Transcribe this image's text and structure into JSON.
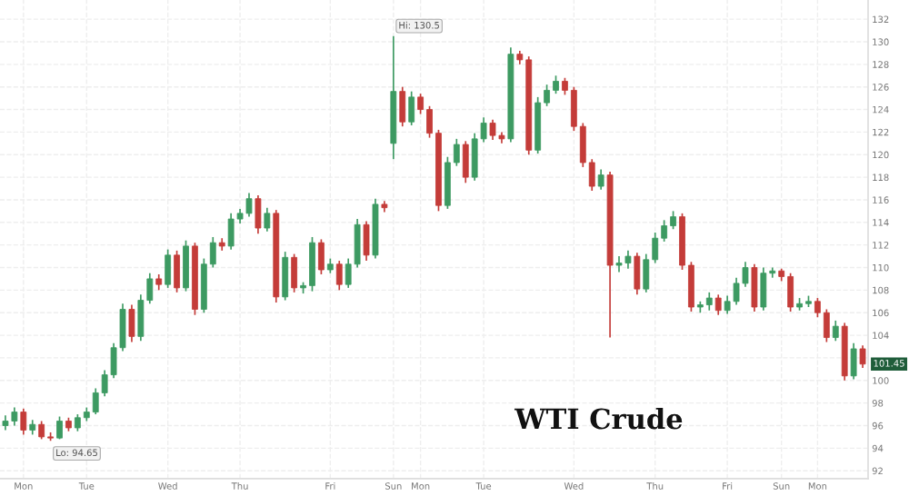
{
  "chart_data": {
    "type": "candlestick",
    "title": "WTI Crude",
    "categories": [
      null,
      null,
      "Mon",
      null,
      null,
      null,
      null,
      null,
      null,
      "Tue",
      null,
      null,
      null,
      null,
      null,
      null,
      null,
      null,
      "Wed",
      null,
      null,
      null,
      null,
      null,
      null,
      null,
      "Thu",
      null,
      null,
      null,
      null,
      null,
      null,
      null,
      null,
      null,
      "Fri",
      null,
      null,
      null,
      null,
      null,
      null,
      "Sun",
      null,
      null,
      "Mon",
      null,
      null,
      null,
      null,
      null,
      null,
      "Tue",
      null,
      null,
      null,
      null,
      null,
      null,
      null,
      null,
      null,
      "Wed",
      null,
      null,
      null,
      null,
      null,
      null,
      null,
      null,
      "Thu",
      null,
      null,
      null,
      null,
      null,
      null,
      null,
      "Fri",
      null,
      null,
      null,
      null,
      null,
      "Sun",
      null,
      null,
      null,
      "Mon",
      null,
      null,
      null,
      null,
      null
    ],
    "ohlc": [
      [
        96.0,
        96.9,
        95.6,
        96.4
      ],
      [
        96.4,
        97.6,
        96.0,
        97.2
      ],
      [
        97.2,
        97.5,
        95.2,
        95.6
      ],
      [
        95.6,
        96.5,
        95.2,
        96.1
      ],
      [
        96.1,
        96.4,
        94.8,
        95.0
      ],
      [
        95.0,
        95.4,
        94.65,
        94.9
      ],
      [
        94.9,
        96.8,
        94.8,
        96.4
      ],
      [
        96.4,
        96.7,
        95.5,
        95.8
      ],
      [
        95.8,
        97.0,
        95.5,
        96.7
      ],
      [
        96.7,
        97.6,
        96.4,
        97.2
      ],
      [
        97.2,
        99.3,
        97.0,
        98.9
      ],
      [
        98.9,
        100.9,
        98.6,
        100.5
      ],
      [
        100.5,
        103.3,
        100.2,
        102.9
      ],
      [
        102.9,
        106.8,
        102.6,
        106.3
      ],
      [
        106.3,
        106.7,
        103.4,
        103.9
      ],
      [
        103.9,
        107.6,
        103.5,
        107.1
      ],
      [
        107.1,
        109.5,
        106.8,
        109.0
      ],
      [
        109.0,
        109.4,
        108.0,
        108.5
      ],
      [
        108.5,
        111.6,
        108.2,
        111.1
      ],
      [
        111.1,
        111.5,
        107.8,
        108.2
      ],
      [
        108.2,
        112.4,
        107.9,
        111.9
      ],
      [
        111.9,
        112.2,
        105.8,
        106.3
      ],
      [
        106.3,
        110.8,
        106.0,
        110.3
      ],
      [
        110.3,
        112.7,
        110.0,
        112.2
      ],
      [
        112.2,
        112.6,
        111.5,
        111.9
      ],
      [
        111.9,
        114.8,
        111.6,
        114.3
      ],
      [
        114.3,
        115.2,
        113.9,
        114.8
      ],
      [
        114.8,
        116.6,
        114.5,
        116.1
      ],
      [
        116.1,
        116.4,
        113.0,
        113.5
      ],
      [
        113.5,
        115.3,
        113.2,
        114.8
      ],
      [
        114.8,
        115.1,
        106.9,
        107.4
      ],
      [
        107.4,
        111.4,
        107.1,
        110.9
      ],
      [
        110.9,
        111.2,
        107.8,
        108.2
      ],
      [
        108.2,
        108.7,
        107.7,
        108.4
      ],
      [
        108.4,
        112.7,
        107.9,
        112.2
      ],
      [
        112.2,
        112.5,
        109.4,
        109.8
      ],
      [
        109.8,
        110.8,
        109.5,
        110.3
      ],
      [
        110.3,
        110.6,
        108.0,
        108.5
      ],
      [
        108.5,
        110.8,
        108.2,
        110.3
      ],
      [
        110.3,
        114.3,
        110.0,
        113.8
      ],
      [
        113.8,
        114.1,
        110.6,
        111.1
      ],
      [
        111.1,
        116.1,
        110.8,
        115.6
      ],
      [
        115.6,
        115.9,
        114.9,
        115.3
      ],
      [
        121.0,
        130.5,
        119.6,
        125.6
      ],
      [
        125.6,
        126.0,
        122.5,
        122.9
      ],
      [
        122.9,
        125.6,
        122.6,
        125.1
      ],
      [
        125.1,
        125.4,
        123.6,
        124.0
      ],
      [
        124.0,
        124.3,
        121.5,
        121.9
      ],
      [
        121.9,
        122.2,
        115.0,
        115.5
      ],
      [
        115.5,
        119.8,
        115.2,
        119.3
      ],
      [
        119.3,
        121.4,
        119.0,
        120.9
      ],
      [
        120.9,
        121.2,
        117.5,
        118.0
      ],
      [
        118.0,
        121.9,
        117.7,
        121.4
      ],
      [
        121.4,
        123.3,
        121.1,
        122.8
      ],
      [
        122.8,
        123.1,
        121.3,
        121.7
      ],
      [
        121.7,
        122.0,
        121.0,
        121.4
      ],
      [
        121.4,
        129.5,
        121.1,
        128.9
      ],
      [
        128.9,
        129.2,
        128.0,
        128.4
      ],
      [
        128.4,
        128.7,
        120.0,
        120.4
      ],
      [
        120.4,
        125.1,
        120.1,
        124.6
      ],
      [
        124.6,
        126.2,
        124.3,
        125.7
      ],
      [
        125.7,
        127.0,
        125.4,
        126.5
      ],
      [
        126.5,
        126.8,
        125.3,
        125.7
      ],
      [
        125.7,
        126.0,
        122.1,
        122.5
      ],
      [
        122.5,
        122.8,
        118.9,
        119.3
      ],
      [
        119.3,
        119.6,
        116.8,
        117.2
      ],
      [
        117.2,
        118.7,
        116.9,
        118.2
      ],
      [
        118.2,
        118.5,
        103.8,
        110.2
      ],
      [
        110.2,
        111.0,
        109.6,
        110.4
      ],
      [
        110.4,
        111.5,
        109.9,
        111.0
      ],
      [
        111.0,
        111.3,
        107.6,
        108.1
      ],
      [
        108.1,
        111.2,
        107.8,
        110.7
      ],
      [
        110.7,
        113.1,
        110.4,
        112.6
      ],
      [
        112.6,
        114.2,
        112.3,
        113.7
      ],
      [
        113.7,
        115.0,
        113.4,
        114.5
      ],
      [
        114.5,
        114.8,
        109.8,
        110.2
      ],
      [
        110.2,
        110.5,
        106.1,
        106.5
      ],
      [
        106.5,
        107.0,
        106.0,
        106.7
      ],
      [
        106.7,
        107.8,
        106.2,
        107.3
      ],
      [
        107.3,
        107.6,
        105.8,
        106.2
      ],
      [
        106.2,
        107.5,
        105.9,
        107.0
      ],
      [
        107.0,
        109.1,
        106.7,
        108.6
      ],
      [
        108.6,
        110.5,
        108.3,
        110.0
      ],
      [
        110.0,
        110.3,
        106.1,
        106.5
      ],
      [
        106.5,
        110.0,
        106.2,
        109.5
      ],
      [
        109.5,
        110.0,
        109.1,
        109.7
      ],
      [
        109.7,
        109.9,
        108.8,
        109.2
      ],
      [
        109.2,
        109.5,
        106.1,
        106.5
      ],
      [
        106.5,
        107.3,
        106.2,
        106.8
      ],
      [
        106.8,
        107.5,
        106.5,
        107.0
      ],
      [
        107.0,
        107.3,
        105.6,
        106.0
      ],
      [
        106.0,
        106.3,
        103.4,
        103.8
      ],
      [
        103.8,
        105.3,
        103.5,
        104.8
      ],
      [
        104.8,
        105.1,
        100.0,
        100.4
      ],
      [
        100.4,
        103.3,
        100.1,
        102.8
      ],
      [
        102.8,
        103.1,
        101.1,
        101.45
      ]
    ],
    "colors": [
      "#3d9a62",
      "#3d9a62",
      "#c43c39",
      "#3d9a62",
      "#c43c39",
      "#c43c39",
      "#3d9a62",
      "#c43c39",
      "#3d9a62",
      "#3d9a62",
      "#3d9a62",
      "#3d9a62",
      "#3d9a62",
      "#3d9a62",
      "#c43c39",
      "#3d9a62",
      "#3d9a62",
      "#c43c39",
      "#3d9a62",
      "#c43c39",
      "#3d9a62",
      "#c43c39",
      "#3d9a62",
      "#3d9a62",
      "#c43c39",
      "#3d9a62",
      "#3d9a62",
      "#3d9a62",
      "#c43c39",
      "#3d9a62",
      "#c43c39",
      "#3d9a62",
      "#c43c39",
      "#3d9a62",
      "#3d9a62",
      "#c43c39",
      "#3d9a62",
      "#c43c39",
      "#3d9a62",
      "#3d9a62",
      "#c43c39",
      "#3d9a62",
      "#c43c39",
      "#3d9a62",
      "#c43c39",
      "#3d9a62",
      "#c43c39",
      "#c43c39",
      "#c43c39",
      "#3d9a62",
      "#3d9a62",
      "#c43c39",
      "#3d9a62",
      "#3d9a62",
      "#c43c39",
      "#c43c39",
      "#3d9a62",
      "#c43c39",
      "#c43c39",
      "#3d9a62",
      "#3d9a62",
      "#3d9a62",
      "#c43c39",
      "#c43c39",
      "#c43c39",
      "#c43c39",
      "#3d9a62",
      "#c43c39",
      "#3d9a62",
      "#3d9a62",
      "#c43c39",
      "#3d9a62",
      "#3d9a62",
      "#3d9a62",
      "#3d9a62",
      "#c43c39",
      "#c43c39",
      "#3d9a62",
      "#3d9a62",
      "#c43c39",
      "#3d9a62",
      "#3d9a62",
      "#3d9a62",
      "#c43c39",
      "#3d9a62",
      "#3d9a62",
      "#c43c39",
      "#c43c39",
      "#3d9a62",
      "#3d9a62",
      "#c43c39",
      "#c43c39",
      "#3d9a62",
      "#c43c39",
      "#3d9a62",
      "#c43c39"
    ],
    "ylim": [
      91.3,
      133.7
    ],
    "yticks": [
      92,
      94,
      96,
      98,
      100,
      {
        "value": 102,
        "label": null
      },
      104,
      106,
      108,
      110,
      112,
      114,
      116,
      118,
      120,
      122,
      124,
      126,
      128,
      130,
      132
    ],
    "grid": true,
    "annotations": [
      "Hi: 130.5",
      "Lo: 94.65",
      {
        "text": "101.45",
        "y": 101.45
      }
    ]
  }
}
